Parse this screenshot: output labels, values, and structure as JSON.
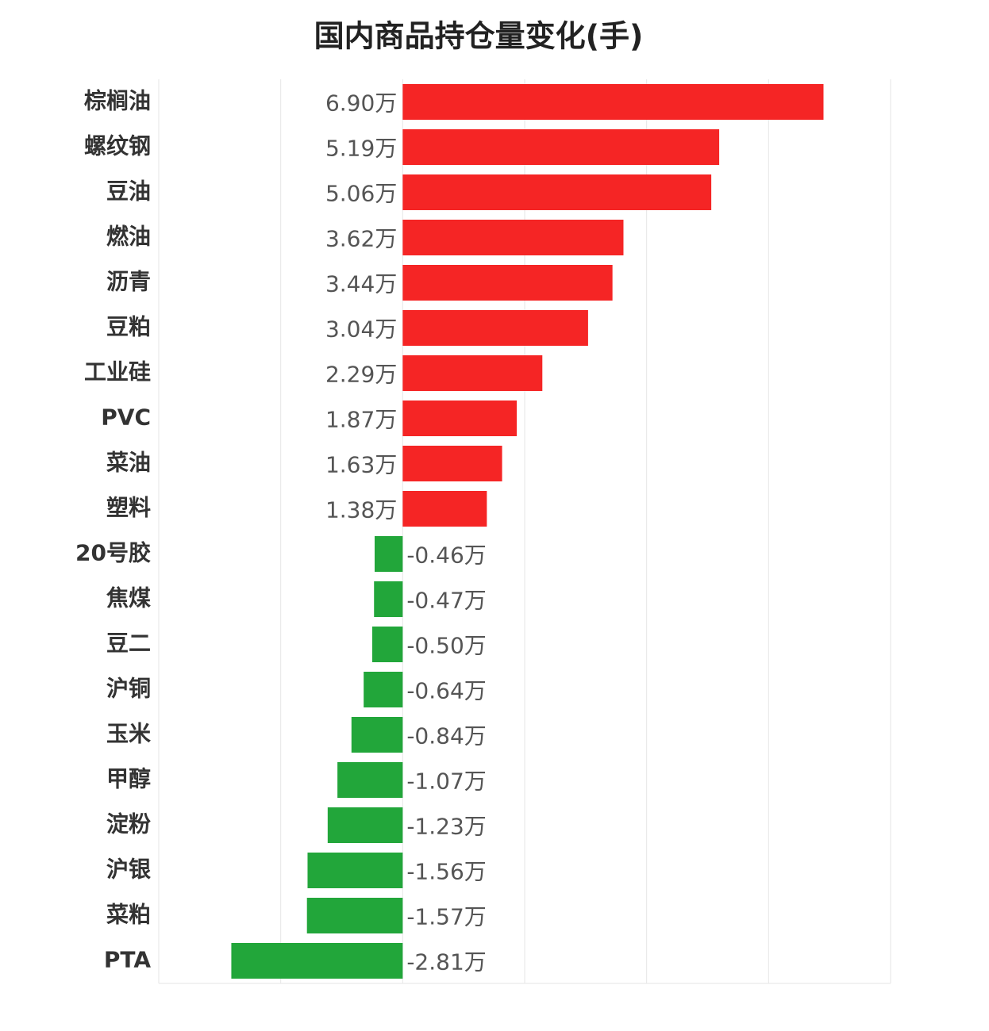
{
  "chart_data": {
    "type": "bar",
    "orientation": "horizontal",
    "title": "国内商品持仓量变化(手)",
    "categories": [
      "棕榈油",
      "螺纹钢",
      "豆油",
      "燃油",
      "沥青",
      "豆粕",
      "工业硅",
      "PVC",
      "菜油",
      "塑料",
      "20号胶",
      "焦煤",
      "豆二",
      "沪铜",
      "玉米",
      "甲醇",
      "淀粉",
      "沪银",
      "菜粕",
      "PTA"
    ],
    "values": [
      6.9,
      5.19,
      5.06,
      3.62,
      3.44,
      3.04,
      2.29,
      1.87,
      1.63,
      1.38,
      -0.46,
      -0.47,
      -0.5,
      -0.64,
      -0.84,
      -1.07,
      -1.23,
      -1.56,
      -1.57,
      -2.81
    ],
    "value_labels": [
      "6.90万",
      "5.19万",
      "5.06万",
      "3.62万",
      "3.44万",
      "3.04万",
      "2.29万",
      "1.87万",
      "1.63万",
      "1.38万",
      "-0.46万",
      "-0.47万",
      "-0.50万",
      "-0.64万",
      "-0.84万",
      "-1.07万",
      "-1.23万",
      "-1.56万",
      "-1.57万",
      "-2.81万"
    ],
    "positive_color": "#f52525",
    "negative_color": "#22a63a",
    "xlim": [
      -4,
      8
    ],
    "xticks": [
      -4,
      -2,
      0,
      2,
      4,
      6,
      8
    ],
    "grid": true
  }
}
